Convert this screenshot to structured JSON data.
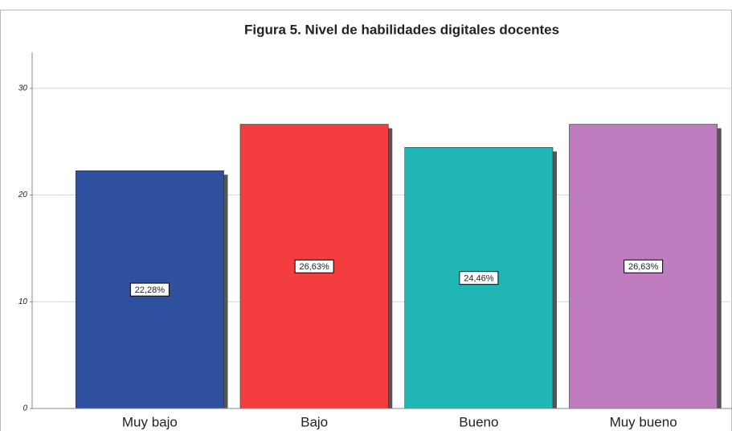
{
  "chart_data": {
    "type": "bar",
    "title": "Figura 5. Nivel de habilidades digitales docentes",
    "categories": [
      "Muy bajo",
      "Bajo",
      "Bueno",
      "Muy bueno"
    ],
    "values": [
      22.28,
      26.63,
      24.46,
      26.63
    ],
    "value_labels": [
      "22,28%",
      "26,63%",
      "24,46%",
      "26,63%"
    ],
    "colors": [
      "#2f4f9f",
      "#f43d3f",
      "#20b6b6",
      "#bf7cbf"
    ],
    "ylim": [
      0,
      33
    ],
    "yticks": [
      0,
      10,
      20,
      30
    ],
    "grid": true
  }
}
